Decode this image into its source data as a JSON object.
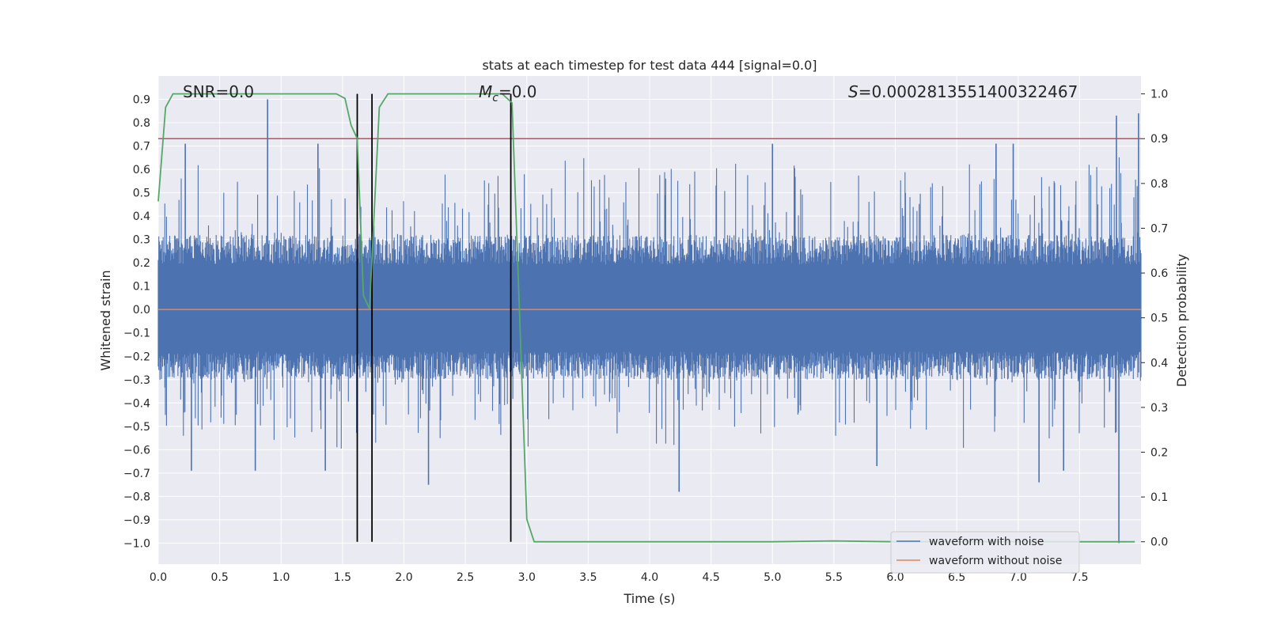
{
  "chart_data": {
    "type": "line",
    "title": "stats at each timestep for test data 444 [signal=0.0]",
    "xlabel": "Time (s)",
    "ylabel": "Whitened strain",
    "y2label": "Detection probability",
    "xlim": [
      0,
      8
    ],
    "ylim": [
      -1.09,
      1.0
    ],
    "y2lim": [
      -0.05,
      1.04
    ],
    "xticks": [
      "0.0",
      "0.5",
      "1.0",
      "1.5",
      "2.0",
      "2.5",
      "3.0",
      "3.5",
      "4.0",
      "4.5",
      "5.0",
      "5.5",
      "6.0",
      "6.5",
      "7.0",
      "7.5"
    ],
    "yticks": [
      "0.9",
      "0.8",
      "0.7",
      "0.6",
      "0.5",
      "0.4",
      "0.3",
      "0.2",
      "0.1",
      "0.0",
      "−0.1",
      "−0.2",
      "−0.3",
      "−0.4",
      "−0.5",
      "−0.6",
      "−0.7",
      "−0.8",
      "−0.9",
      "−1.0"
    ],
    "y2ticks": [
      "1.0",
      "0.9",
      "0.8",
      "0.7",
      "0.6",
      "0.5",
      "0.4",
      "0.3",
      "0.2",
      "0.1",
      "0.0"
    ],
    "grid": true,
    "legend_position": "lower-right",
    "annotations": {
      "snr": "SNR=0.0",
      "mc": "=0.0",
      "mc_symbol": "M",
      "mc_sub": "c",
      "s": "=0.0002813551400322467",
      "s_symbol": "S"
    },
    "series": [
      {
        "name": "waveform with noise",
        "color": "#4c72b0",
        "description": "noise_band",
        "band_upper": 0.32,
        "band_lower": -0.3,
        "spike_max": 0.9,
        "spike_min": -1.0,
        "spikes": [
          [
            0.89,
            0.9
          ],
          [
            0.22,
            0.71
          ],
          [
            1.3,
            0.71
          ],
          [
            5.0,
            0.71
          ],
          [
            6.82,
            0.71
          ],
          [
            6.96,
            0.71
          ],
          [
            7.8,
            0.83
          ],
          [
            7.98,
            0.84
          ],
          [
            0.27,
            -0.69
          ],
          [
            0.79,
            -0.69
          ],
          [
            1.36,
            -0.69
          ],
          [
            2.2,
            -0.75
          ],
          [
            4.24,
            -0.78
          ],
          [
            7.17,
            -0.74
          ],
          [
            7.82,
            -1.0
          ],
          [
            7.37,
            -0.69
          ],
          [
            5.85,
            -0.67
          ]
        ]
      },
      {
        "name": "waveform without noise",
        "color": "#dd8452",
        "values_constant": 0.0
      },
      {
        "name": "detection probability",
        "color": "#55a868",
        "axis": "right",
        "x": [
          0.0,
          0.06,
          0.12,
          0.2,
          0.5,
          1.0,
          1.45,
          1.52,
          1.57,
          1.62,
          1.67,
          1.72,
          1.8,
          1.87,
          2.0,
          2.5,
          2.8,
          2.88,
          2.94,
          3.0,
          3.06,
          3.12,
          3.5,
          5.0,
          5.5,
          6.0,
          7.5,
          7.95
        ],
        "y": [
          0.76,
          0.97,
          1.0,
          1.0,
          1.0,
          1.0,
          1.0,
          0.99,
          0.93,
          0.9,
          0.55,
          0.52,
          0.97,
          1.0,
          1.0,
          1.0,
          1.0,
          0.98,
          0.52,
          0.05,
          0.0,
          0.0,
          0.0,
          0.0,
          0.002,
          0.0,
          0.0,
          0.0
        ]
      },
      {
        "name": "threshold",
        "color": "#c44e52",
        "axis": "right",
        "value": 0.9
      }
    ],
    "vertical_lines_x": [
      1.62,
      1.74,
      2.87
    ],
    "vertical_line_color": "#000000",
    "colors": {
      "background": "#eaeaf2",
      "grid": "#ffffff"
    }
  }
}
